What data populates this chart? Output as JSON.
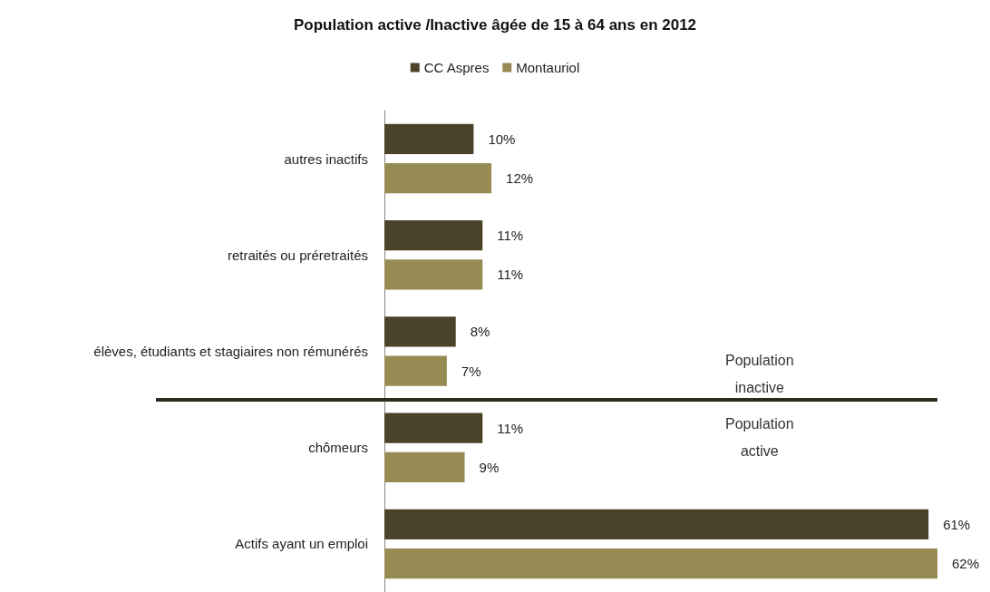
{
  "chart_data": {
    "type": "bar",
    "orientation": "horizontal",
    "title": "Population active /Inactive âgée de 15 à 64 ans en 2012",
    "categories": [
      "autres inactifs",
      "retraités ou préretraités",
      "élèves, étudiants et stagiaires non rémunérés",
      "chômeurs",
      "Actifs ayant un emploi"
    ],
    "series": [
      {
        "name": "CC Aspres",
        "color": "#4a4229",
        "values": [
          10,
          11,
          8,
          11,
          61
        ],
        "value_labels": [
          "10%",
          "11%",
          "8%",
          "11%",
          "61%"
        ]
      },
      {
        "name": "Montauriol",
        "color": "#978b54",
        "values": [
          12,
          11,
          7,
          9,
          62
        ],
        "value_labels": [
          "12%",
          "11%",
          "7%",
          "9%",
          "62%"
        ]
      }
    ],
    "annotations": [
      "Population inactive",
      "Population active"
    ],
    "legend": "top"
  }
}
